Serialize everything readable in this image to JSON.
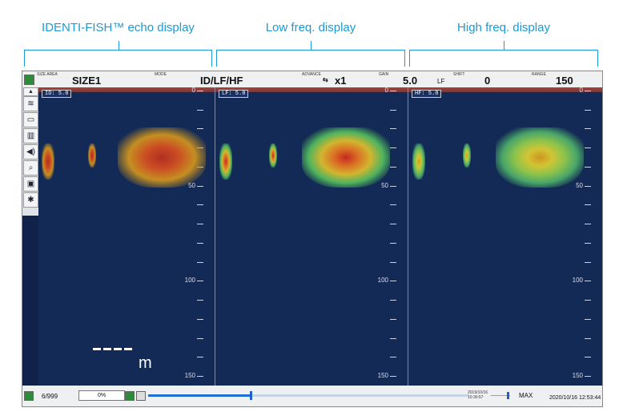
{
  "callouts": {
    "identi": "IDENTI-FISH™ echo display",
    "low": "Low freq. display",
    "high": "High freq. display"
  },
  "topbar": {
    "size_area_label": "SIZE AREA",
    "size_area_value": "SIZE1",
    "mode_label": "MODE",
    "mode_value": "ID/LF/HF",
    "advance_label": "ADVANCE",
    "advance_value": "x1",
    "gain_label": "GAIN",
    "gain_value": "5.0",
    "gain_freq": "LF",
    "shift_label": "SHIFT",
    "shift_value": "0",
    "range_label": "RANGE",
    "range_value": "150"
  },
  "panels": [
    {
      "tag": "ID: 5.0",
      "surface": "0",
      "d50": "50",
      "d100": "100",
      "d150": "150"
    },
    {
      "tag": "LF: 5.0",
      "surface": "0",
      "d50": "50",
      "d100": "100",
      "d150": "150"
    },
    {
      "tag": "HF: 5.0",
      "surface": "0",
      "d50": "50",
      "d100": "100",
      "d150": "150"
    }
  ],
  "toolbar_icons": [
    "arrow-up-icon",
    "fish-icon",
    "window-icon",
    "bars-chart-icon",
    "speaker-icon",
    "fish-search-icon",
    "save-icon",
    "tools-icon"
  ],
  "scale_unit": "m",
  "bottombar": {
    "count": "6/999",
    "percent": "0%",
    "progress_fraction": 0.32,
    "mini_date": "2019/10/16",
    "mini_time": "10:30:57",
    "max_label": "MAX",
    "datetime": "2020/10/16 12:53:44"
  },
  "colors": {
    "accent": "#1a9ad6",
    "screen_bg": "#122a55"
  }
}
